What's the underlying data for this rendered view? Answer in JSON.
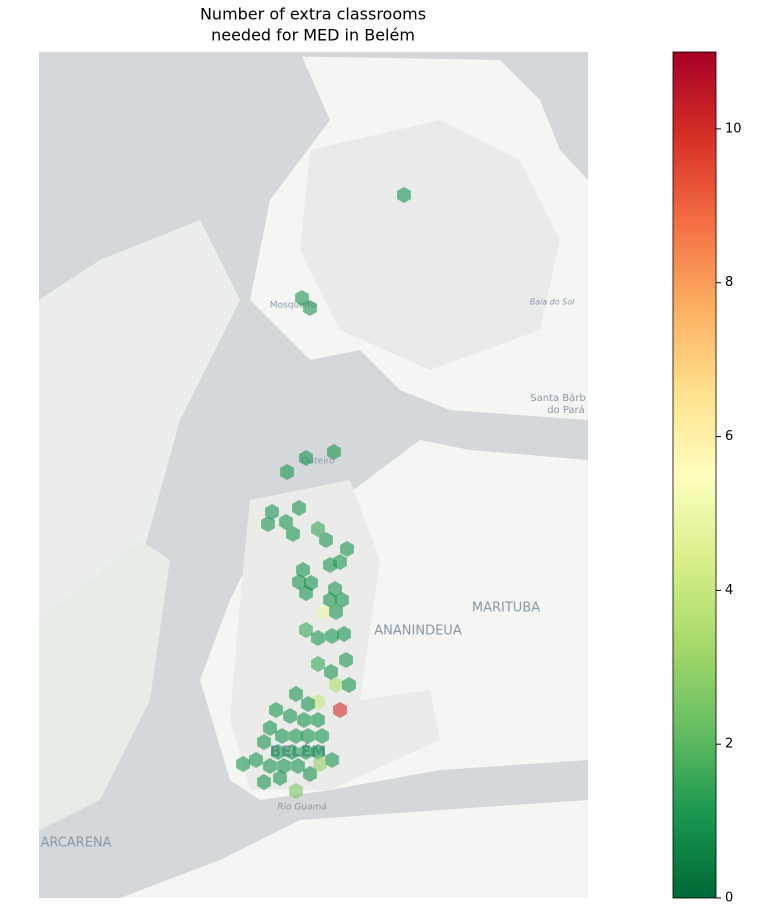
{
  "title_lines": [
    "Number of extra classrooms",
    "needed for MED in Belém"
  ],
  "map_labels": [
    "Mosqueiro",
    "Outeiro",
    "Baía do Sol",
    "Santa Bárb",
    "do Pará",
    "MARITUBA",
    "ANANINDEUA",
    "BELÉM",
    "Rio Guamá",
    "ARCARENA"
  ],
  "colorbar": {
    "lim": [
      0,
      11
    ],
    "ticks": [
      0,
      2,
      4,
      6,
      8,
      10
    ],
    "colormap": [
      "#006837",
      "#1a9850",
      "#66bd63",
      "#a6d96a",
      "#d9ef8b",
      "#ffffbf",
      "#fee08b",
      "#fdae61",
      "#f46d43",
      "#d73027",
      "#a50026"
    ]
  },
  "hex_values": [
    1,
    1,
    1,
    1,
    1,
    1,
    1,
    1,
    1,
    1,
    1,
    1.5,
    1,
    1,
    1,
    1,
    1,
    1,
    1,
    1,
    1,
    1,
    1,
    5,
    1,
    1.5,
    1,
    1,
    1,
    1,
    1.5,
    1,
    3.5,
    1,
    4,
    1,
    1,
    10,
    1,
    1,
    1,
    1,
    1,
    1,
    1,
    1,
    1,
    1,
    1,
    1,
    1,
    1,
    1,
    1,
    1,
    1,
    1,
    3,
    1,
    1,
    1,
    2.5,
    1
  ]
}
